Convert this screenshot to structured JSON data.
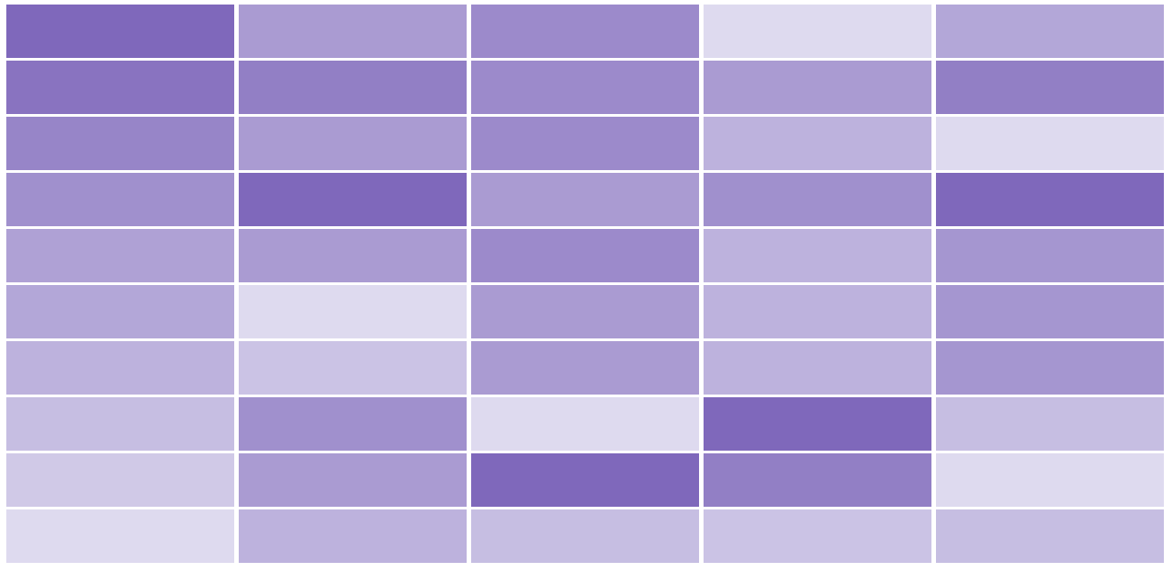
{
  "chart_data": {
    "type": "heatmap",
    "title": "",
    "xlabel": "",
    "ylabel": "",
    "rows": 10,
    "columns": 5,
    "color_scale": {
      "low": "#dedaef",
      "high": "#7f68bb"
    },
    "grid": false,
    "legend": "none",
    "values": [
      [
        1.0,
        0.55,
        0.7,
        0.0,
        0.45
      ],
      [
        0.9,
        0.8,
        0.7,
        0.55,
        0.8
      ],
      [
        0.75,
        0.55,
        0.7,
        0.35,
        0.0
      ],
      [
        0.65,
        1.0,
        0.55,
        0.65,
        1.0
      ],
      [
        0.5,
        0.55,
        0.7,
        0.35,
        0.6
      ],
      [
        0.45,
        0.0,
        0.55,
        0.35,
        0.6
      ],
      [
        0.35,
        0.2,
        0.55,
        0.35,
        0.6
      ],
      [
        0.25,
        0.65,
        0.0,
        1.0,
        0.25
      ],
      [
        0.15,
        0.55,
        1.0,
        0.8,
        0.0
      ],
      [
        0.0,
        0.35,
        0.25,
        0.2,
        0.25
      ]
    ]
  }
}
